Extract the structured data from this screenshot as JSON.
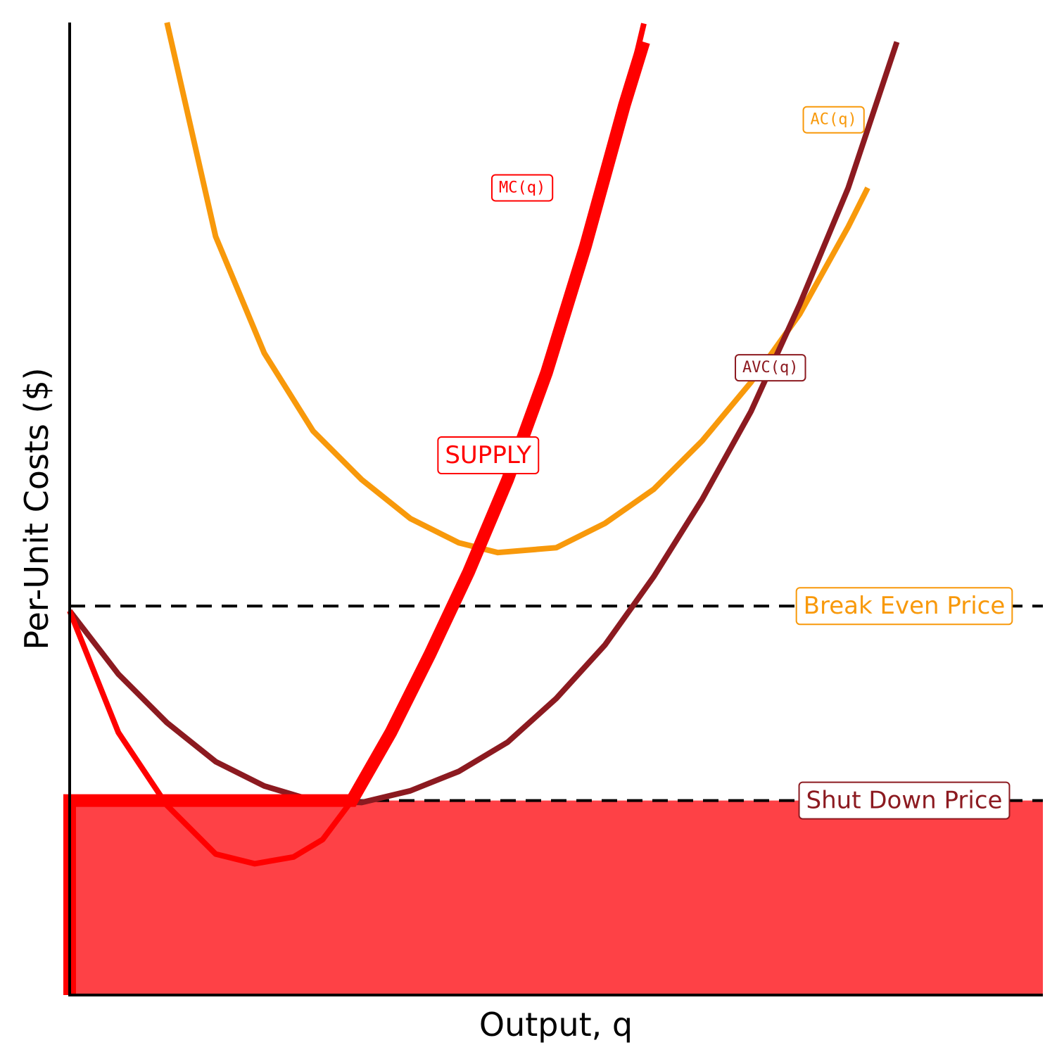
{
  "chart_data": {
    "type": "line",
    "title": "",
    "xlabel": "Output, q",
    "ylabel": "Per-Unit Costs ($)",
    "xlim": [
      0,
      10
    ],
    "ylim": [
      0,
      10
    ],
    "ticks": "none",
    "grid": false,
    "series": [
      {
        "name": "AC(q)",
        "color": "#f8990b",
        "points": [
          [
            1.0,
            10.0
          ],
          [
            1.5,
            7.8
          ],
          [
            2.0,
            6.6
          ],
          [
            2.5,
            5.8
          ],
          [
            3.0,
            5.3
          ],
          [
            3.5,
            4.9
          ],
          [
            4.0,
            4.65
          ],
          [
            4.4,
            4.55
          ],
          [
            5.0,
            4.6
          ],
          [
            5.5,
            4.85
          ],
          [
            6.0,
            5.2
          ],
          [
            6.5,
            5.7
          ],
          [
            7.0,
            6.3
          ],
          [
            7.5,
            7.0
          ],
          [
            8.0,
            7.9
          ],
          [
            8.2,
            8.3
          ]
        ]
      },
      {
        "name": "AVC(q)",
        "color": "#8c1a20",
        "points": [
          [
            0.0,
            3.95
          ],
          [
            0.5,
            3.3
          ],
          [
            1.0,
            2.8
          ],
          [
            1.5,
            2.4
          ],
          [
            2.0,
            2.15
          ],
          [
            2.5,
            2.0
          ],
          [
            3.0,
            1.98
          ],
          [
            3.5,
            2.1
          ],
          [
            4.0,
            2.3
          ],
          [
            4.5,
            2.6
          ],
          [
            5.0,
            3.05
          ],
          [
            5.5,
            3.6
          ],
          [
            6.0,
            4.3
          ],
          [
            6.5,
            5.1
          ],
          [
            7.0,
            6.0
          ],
          [
            7.5,
            7.1
          ],
          [
            8.0,
            8.3
          ],
          [
            8.5,
            9.8
          ]
        ]
      },
      {
        "name": "MC(q)",
        "color": "#ff0000",
        "points": [
          [
            0.0,
            3.95
          ],
          [
            0.5,
            2.7
          ],
          [
            1.0,
            1.95
          ],
          [
            1.5,
            1.45
          ],
          [
            1.9,
            1.35
          ],
          [
            2.3,
            1.42
          ],
          [
            2.6,
            1.6
          ],
          [
            2.9,
            2.0
          ],
          [
            3.3,
            2.7
          ],
          [
            3.7,
            3.5
          ],
          [
            4.1,
            4.35
          ],
          [
            4.5,
            5.3
          ],
          [
            4.9,
            6.4
          ],
          [
            5.3,
            7.7
          ],
          [
            5.7,
            9.15
          ],
          [
            5.9,
            9.99
          ]
        ]
      }
    ],
    "supply": {
      "name": "SUPPLY",
      "color": "#ff0000",
      "points": [
        [
          0.0,
          0.0
        ],
        [
          0.0,
          2.0
        ],
        [
          2.8,
          2.0
        ],
        [
          2.9,
          2.0
        ],
        [
          3.3,
          2.7
        ],
        [
          3.7,
          3.5
        ],
        [
          4.1,
          4.35
        ],
        [
          4.5,
          5.3
        ],
        [
          4.9,
          6.4
        ],
        [
          5.3,
          7.7
        ],
        [
          5.7,
          9.15
        ],
        [
          5.9,
          9.8
        ]
      ],
      "region_color": "#fe4146"
    },
    "reference_lines": [
      {
        "name": "Break Even Price",
        "y": 4.0,
        "style": "dashed",
        "label_color": "#f8990b"
      },
      {
        "name": "Shut Down Price",
        "y": 2.0,
        "style": "dashed",
        "label_color": "#8c1a20"
      }
    ],
    "annotations": [
      {
        "text": "MC(q)",
        "x": 4.65,
        "y": 8.3,
        "color": "#ff0000"
      },
      {
        "text": "AC(q)",
        "x": 7.85,
        "y": 9.0,
        "color": "#f8990b"
      },
      {
        "text": "AVC(q)",
        "x": 7.2,
        "y": 6.45,
        "color": "#8c1a20"
      },
      {
        "text": "SUPPLY",
        "x": 4.3,
        "y": 5.55,
        "color": "#ff0000"
      }
    ]
  }
}
